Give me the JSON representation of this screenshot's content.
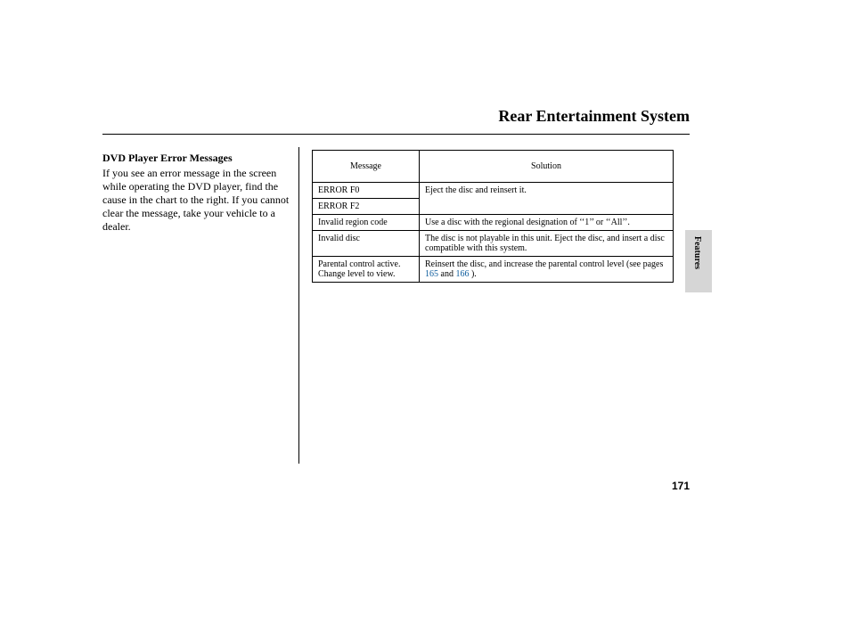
{
  "page": {
    "title": "Rear Entertainment System",
    "number": "171",
    "section_tab": "Features"
  },
  "left": {
    "heading": "DVD Player Error Messages",
    "body": "If you see an error message in the screen while operating the DVD player, find the cause in the chart to the right. If you cannot clear the message, take your vehicle to a dealer."
  },
  "table": {
    "headers": {
      "message": "Message",
      "solution": "Solution"
    },
    "rows": {
      "r1": {
        "msg": "ERROR F0",
        "sol": "Eject the disc and reinsert it."
      },
      "r2": {
        "msg": "ERROR F2",
        "sol": ""
      },
      "r3": {
        "msg": "Invalid region code",
        "sol": "Use a disc with the regional designation of ‘‘1’’ or ‘‘All’’."
      },
      "r4": {
        "msg": "Invalid disc",
        "sol": "The disc is not playable in this unit. Eject the disc, and insert a disc compatible with this system."
      },
      "r5": {
        "msg_l1": "Parental control active.",
        "msg_l2": "Change level to view.",
        "sol_pre": "Reinsert the disc, and increase the parental control level (see pages ",
        "link1": "165",
        "mid": " and ",
        "link2": "166",
        "post": " )."
      }
    }
  },
  "style": {
    "title_fontsize": 18,
    "body_fontsize": 12,
    "table_fontsize": 10,
    "link_color": "#0a5a9c",
    "tab_bg": "#d6d6d6",
    "text_color": "#000000",
    "bg_color": "#ffffff"
  }
}
